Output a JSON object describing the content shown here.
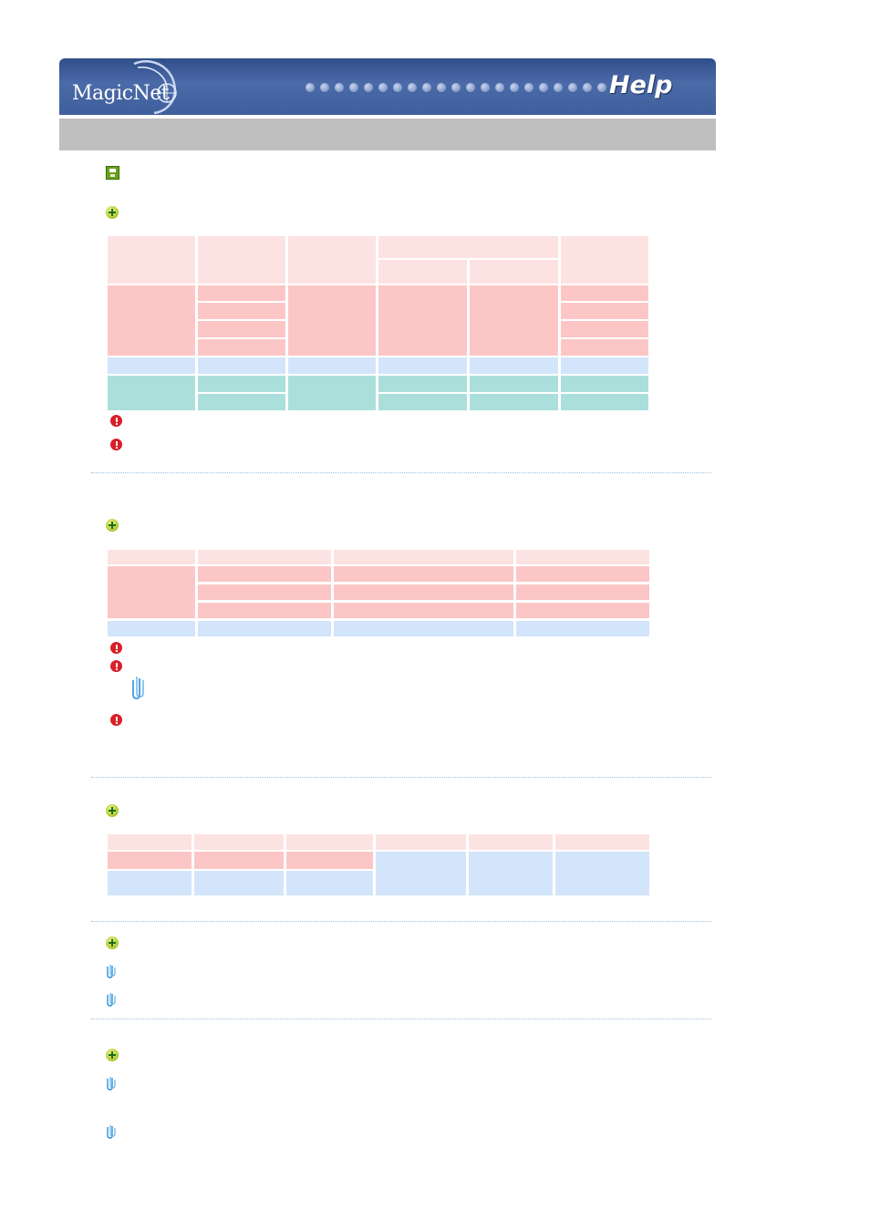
{
  "header": {
    "logo_text": "MagicNet",
    "help_label": "Help",
    "brand_color": "#3f5e9c",
    "title_bar_color": "#bfbfbf"
  },
  "icons": {
    "save": "save-icon",
    "section": "plus-circle-icon",
    "warning": "warning-icon",
    "note": "paperclip-icon"
  },
  "colors": {
    "table_header": "#fde2e2",
    "table_row_red": "#fcc6c6",
    "table_row_blue": "#d3e5fb",
    "table_row_teal": "#abdfdc",
    "separator": "#9fbfe0"
  },
  "sections": [
    {
      "id": "section-1",
      "table": "table-1",
      "warnings": 2
    },
    {
      "id": "section-2",
      "table": "table-2",
      "warnings": 3,
      "notes": 1
    },
    {
      "id": "section-3",
      "table": "table-3"
    },
    {
      "id": "section-4",
      "notes": 2
    },
    {
      "id": "section-5",
      "notes": 2
    }
  ]
}
